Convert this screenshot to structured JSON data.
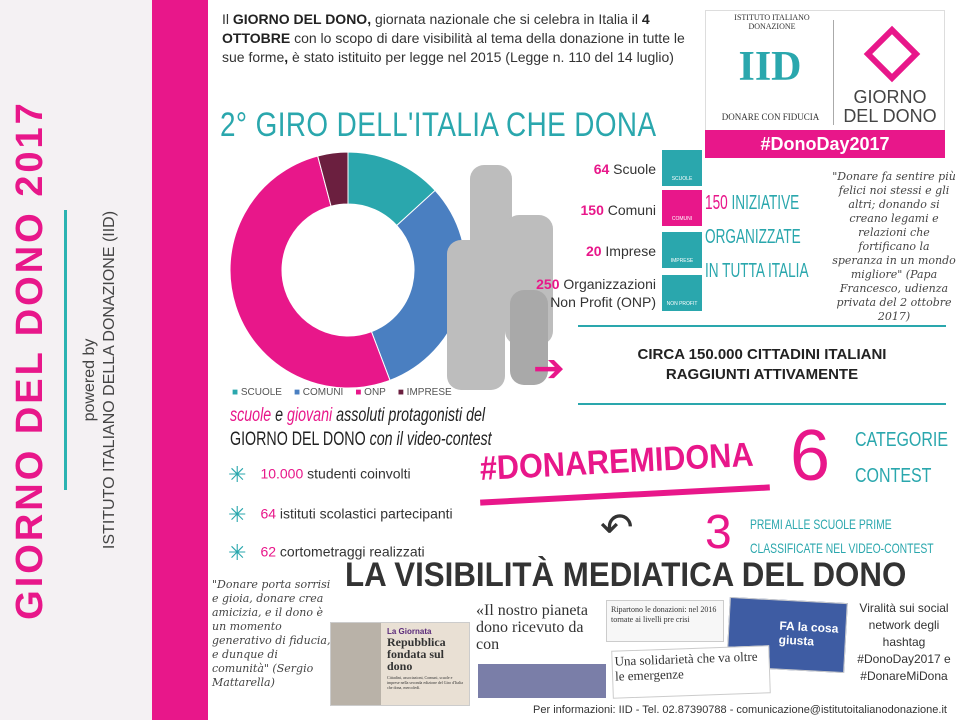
{
  "side": {
    "title": "GIORNO DEL DONO 2017",
    "powered_by": "powered by",
    "org": "ISTITUTO ITALIANO DELLA DONAZIONE (IID)"
  },
  "intro": {
    "p1": "Il ",
    "b1": "GIORNO DEL DONO,",
    "p2": " giornata nazionale che si celebra in Italia il ",
    "b2": "4 OTTOBRE",
    "p3": " con lo scopo di dare visibilità al tema della donazione in tutte le sue forme",
    "b3": ",",
    "p4": " è stato istituito per legge nel 2015 (Legge n. 110 del 14 luglio)"
  },
  "logo": {
    "iid": "IID",
    "arc": "ISTITUTO ITALIANO DONAZIONE",
    "motto": "DONARE CON FIDUCIA",
    "brand1": "GIORNO",
    "brand2": "DEL DONO",
    "hashtag": "#DonoDay2017"
  },
  "headline": "2° GIRO DELL'ITALIA CHE DONA",
  "stats": [
    {
      "n": "64",
      "label": " Scuole",
      "card": "SCUOLE"
    },
    {
      "n": "150",
      "label": " Comuni",
      "card": "COMUNI"
    },
    {
      "n": "20",
      "label": " Imprese",
      "card": "IMPRESE"
    },
    {
      "n": "250",
      "label": " Organizzazioni Non Profit (ONP)",
      "card": "NON PROFIT"
    }
  ],
  "iniziative": {
    "n": "150",
    "l1": " INIZIATIVE",
    "l2": "ORGANIZZATE",
    "l3": "IN TUTTA ITALIA"
  },
  "papa_quote": "\"Donare fa sentire più felici noi stessi e gli altri; donando si creano legami e relazioni che fortificano la speranza in un mondo migliore\" (Papa Francesco, udienza privata del 2 ottobre 2017)",
  "circa": {
    "l1": "CIRCA 150.000 CITTADINI ITALIANI",
    "l2": "RAGGIUNTI ATTIVAMENTE"
  },
  "chart_data": {
    "type": "pie",
    "donut": true,
    "categories": [
      "SCUOLE",
      "COMUNI",
      "ONP",
      "IMPRESE"
    ],
    "values": [
      64,
      150,
      250,
      20
    ],
    "colors": [
      "#2aa7ad",
      "#4a7fc1",
      "#e8178a",
      "#6b1f3f"
    ],
    "legend": "bottom"
  },
  "protag": {
    "w1": "scuole",
    "w2": " e ",
    "w3": "giovani",
    "w4": " assoluti protagonisti del",
    "l2a": "GIORNO DEL DONO",
    "l2b": " con il video-contest"
  },
  "bullets": [
    {
      "n": "10.000",
      "t": " studenti coinvolti"
    },
    {
      "n": "64",
      "t": " istituti scolastici partecipanti"
    },
    {
      "n": "62",
      "t": " cortometraggi realizzati"
    }
  ],
  "contest": {
    "hashtag": "#DONAREMIDONA",
    "six": "6",
    "cat1": "CATEGORIE",
    "cat2": "CONTEST",
    "three": "3",
    "premi1": "PREMI ALLE SCUOLE PRIME",
    "premi2": "CLASSIFICATE NEL VIDEO-CONTEST"
  },
  "media": {
    "title": "LA VISIBILITÀ MEDIATICA DEL DONO",
    "mattarella": "\"Donare porta sorrisi e gioia, donare crea amicizia, e il dono è un momento generativo di fiducia, e dunque di comunità\" (Sergio Mattarella)",
    "clip1_kicker": "La Giornata",
    "clip1_title": "Repubblica fondata sul dono",
    "clip1_body": "Cittadini, associazioni, Comuni, scuole e imprese nella seconda edizione del Giro d'Italia che dona, mercoledì.",
    "clip2": "«Il nostro pianeta dono ricevuto da con",
    "clip3": "Ripartono le donazioni: nel 2016 tornate ai livelli pre crisi",
    "clip4": "Una solidarietà che va oltre le emergenze",
    "clip5": "FA la cosa giusta",
    "viral": "Viralità sui social network degli hashtag #DonoDay2017 e #DonareMiDona"
  },
  "footer": "Per informazioni: IID - Tel. 02.87390788 - comunicazione@istitutoitalianodonazione.it"
}
